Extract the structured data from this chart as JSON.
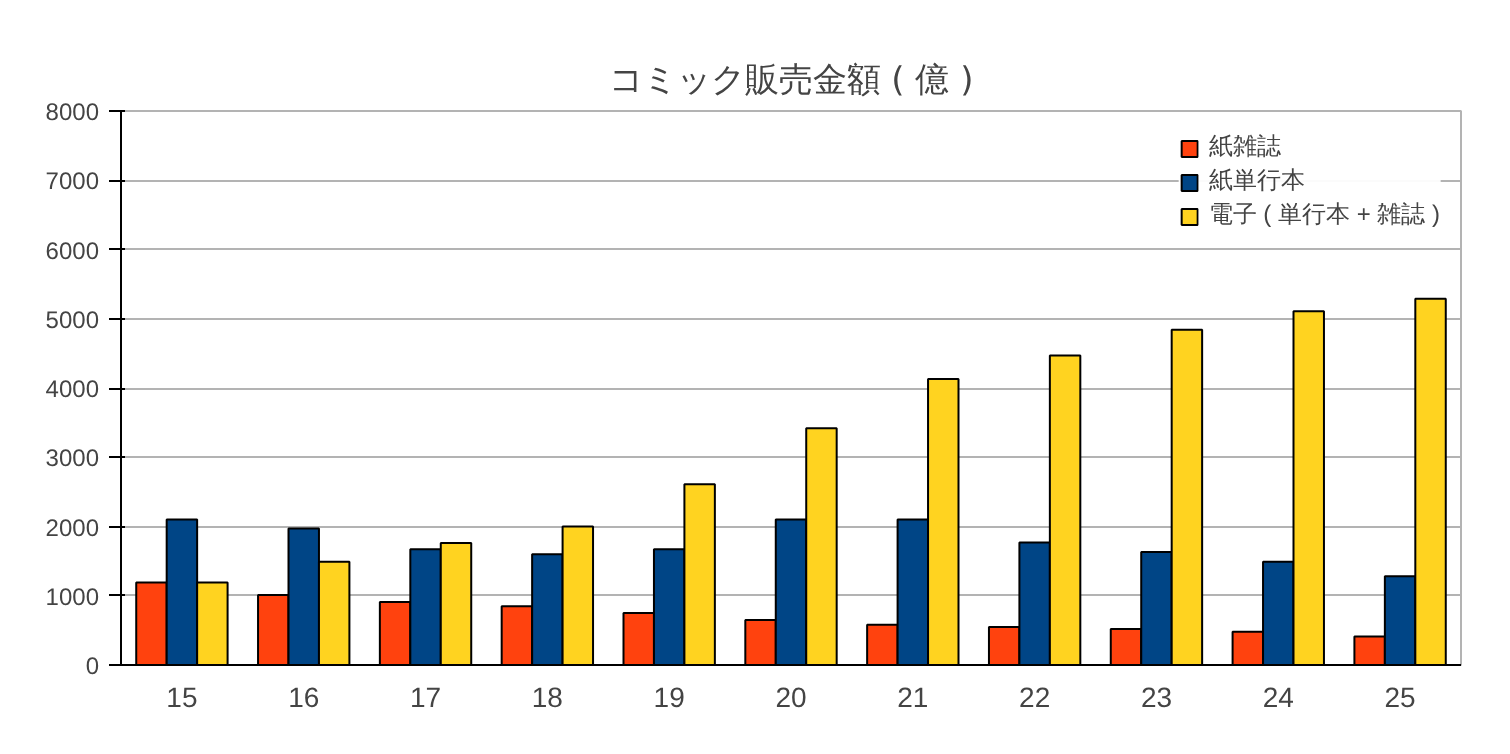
{
  "chart_data": {
    "type": "bar",
    "title": "コミック販売金額 ( 億 )",
    "categories": [
      "15",
      "16",
      "17",
      "18",
      "19",
      "20",
      "21",
      "22",
      "23",
      "24",
      "25"
    ],
    "series": [
      {
        "name": "紙雑誌",
        "color": "#ff420e",
        "values": [
          1190,
          1010,
          910,
          850,
          750,
          650,
          580,
          550,
          520,
          480,
          410
        ]
      },
      {
        "name": "紙単行本",
        "color": "#004586",
        "values": [
          2100,
          1970,
          1670,
          1600,
          1670,
          2100,
          2100,
          1770,
          1630,
          1490,
          1280
        ]
      },
      {
        "name": "電子 ( 単行本 + 雑誌 )",
        "color": "#ffd320",
        "values": [
          1190,
          1490,
          1760,
          2000,
          2610,
          3420,
          4130,
          4470,
          4840,
          5110,
          5290
        ]
      }
    ],
    "ylim": [
      0,
      8000
    ],
    "yticks": [
      0,
      1000,
      2000,
      3000,
      4000,
      5000,
      6000,
      7000,
      8000
    ],
    "grid": "y",
    "legend": "top right"
  }
}
